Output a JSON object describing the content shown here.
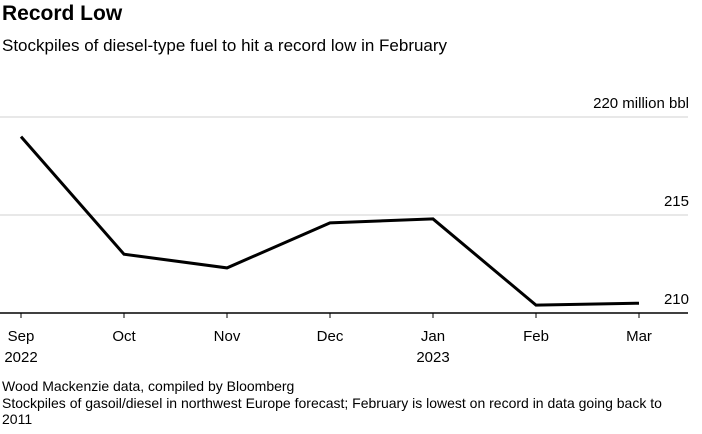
{
  "chart_data": {
    "type": "line",
    "title": "Record Low",
    "subtitle": "Stockpiles of diesel-type fuel to hit a record low in February",
    "x": [
      "Sep 2022",
      "Oct",
      "Nov",
      "Dec",
      "Jan 2023",
      "Feb",
      "Mar"
    ],
    "x_tick_labels": [
      {
        "line1": "Sep",
        "line2": "2022"
      },
      {
        "line1": "Oct",
        "line2": ""
      },
      {
        "line1": "Nov",
        "line2": ""
      },
      {
        "line1": "Dec",
        "line2": ""
      },
      {
        "line1": "Jan",
        "line2": "2023"
      },
      {
        "line1": "Feb",
        "line2": ""
      },
      {
        "line1": "Mar",
        "line2": ""
      }
    ],
    "series": [
      {
        "name": "Stockpiles",
        "values": [
          219.0,
          213.0,
          212.3,
          214.6,
          214.8,
          210.4,
          210.5
        ]
      }
    ],
    "ylim": [
      210,
      220
    ],
    "y_ticks": [
      {
        "value": 220,
        "label": "220 million bbl"
      },
      {
        "value": 215,
        "label": "215"
      },
      {
        "value": 210,
        "label": "210"
      }
    ],
    "ylabel": "million bbl",
    "xlabel": "",
    "grid": true,
    "colors": {
      "line": "#000000",
      "grid": "#d0d0d0",
      "baseline": "#000000"
    }
  },
  "footer": {
    "source": "Wood Mackenzie data, compiled by Bloomberg",
    "note": "Stockpiles of gasoil/diesel in northwest Europe forecast; February is lowest on record in data going back to 2011"
  }
}
